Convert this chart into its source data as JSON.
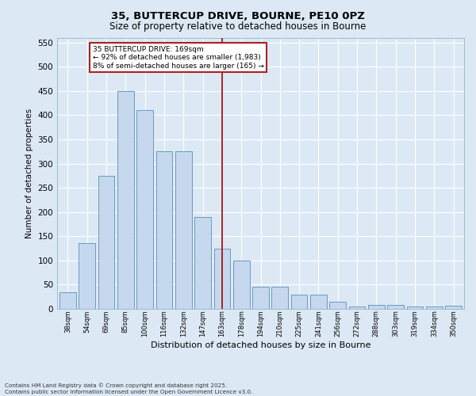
{
  "title1": "35, BUTTERCUP DRIVE, BOURNE, PE10 0PZ",
  "title2": "Size of property relative to detached houses in Bourne",
  "xlabel": "Distribution of detached houses by size in Bourne",
  "ylabel": "Number of detached properties",
  "categories": [
    "38sqm",
    "54sqm",
    "69sqm",
    "85sqm",
    "100sqm",
    "116sqm",
    "132sqm",
    "147sqm",
    "163sqm",
    "178sqm",
    "194sqm",
    "210sqm",
    "225sqm",
    "241sqm",
    "256sqm",
    "272sqm",
    "288sqm",
    "303sqm",
    "319sqm",
    "334sqm",
    "350sqm"
  ],
  "values": [
    35,
    135,
    275,
    450,
    410,
    325,
    325,
    190,
    125,
    100,
    45,
    45,
    30,
    30,
    15,
    5,
    8,
    8,
    5,
    5,
    6
  ],
  "bar_color": "#c5d8ed",
  "bar_edge_color": "#5b8db8",
  "vline_index": 8,
  "vline_color": "#aa2222",
  "annotation_text": "35 BUTTERCUP DRIVE: 169sqm\n← 92% of detached houses are smaller (1,983)\n8% of semi-detached houses are larger (165) →",
  "annotation_box_facecolor": "#ffffff",
  "annotation_box_edgecolor": "#aa2222",
  "ylim": [
    0,
    560
  ],
  "yticks": [
    0,
    50,
    100,
    150,
    200,
    250,
    300,
    350,
    400,
    450,
    500,
    550
  ],
  "bg_color": "#dce9f5",
  "grid_color": "#ffffff",
  "footer": "Contains HM Land Registry data © Crown copyright and database right 2025.\nContains public sector information licensed under the Open Government Licence v3.0."
}
